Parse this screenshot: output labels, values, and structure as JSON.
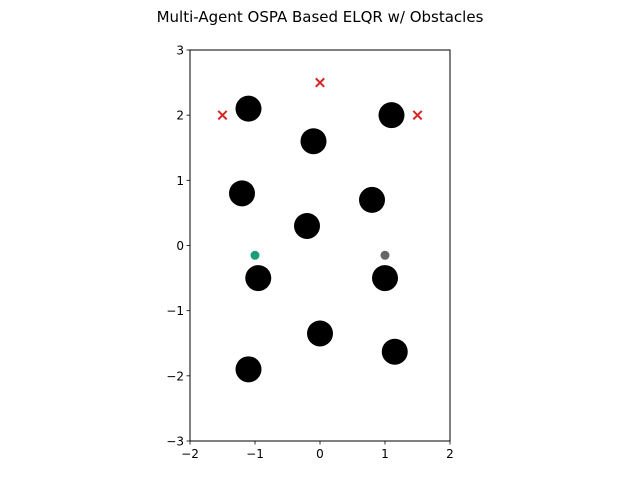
{
  "chart_data": {
    "type": "scatter",
    "title": "Multi-Agent OSPA Based ELQR w/ Obstacles",
    "xlabel": "",
    "ylabel": "",
    "xlim": [
      -2,
      2
    ],
    "ylim": [
      -3,
      3
    ],
    "x_ticks": [
      -2,
      -1,
      0,
      1,
      2
    ],
    "y_ticks": [
      -3,
      -2,
      -1,
      0,
      1,
      2,
      3
    ],
    "x_tick_labels": [
      "−2",
      "−1",
      "0",
      "1",
      "2"
    ],
    "y_tick_labels": [
      "−3",
      "−2",
      "−1",
      "0",
      "1",
      "2",
      "3"
    ],
    "grid": false,
    "aspect": "equal",
    "obstacles": {
      "color": "#000000",
      "radius": 0.2,
      "points": [
        {
          "x": -1.1,
          "y": 2.1
        },
        {
          "x": 1.1,
          "y": 2.0
        },
        {
          "x": -0.1,
          "y": 1.6
        },
        {
          "x": -1.2,
          "y": 0.8
        },
        {
          "x": 0.8,
          "y": 0.7
        },
        {
          "x": -0.2,
          "y": 0.3
        },
        {
          "x": -0.95,
          "y": -0.5
        },
        {
          "x": 1.0,
          "y": -0.5
        },
        {
          "x": 0.0,
          "y": -1.35
        },
        {
          "x": 1.15,
          "y": -1.63
        },
        {
          "x": -1.1,
          "y": -1.9
        }
      ]
    },
    "goals": {
      "marker": "x",
      "color": "#d62728",
      "points": [
        {
          "x": -1.5,
          "y": 2.0
        },
        {
          "x": 0.0,
          "y": 2.5
        },
        {
          "x": 1.5,
          "y": 2.0
        }
      ]
    },
    "agents": [
      {
        "x": -1.0,
        "y": -0.15,
        "color": "#1a9e77"
      },
      {
        "x": 1.0,
        "y": -0.15,
        "color": "#666666"
      }
    ]
  }
}
